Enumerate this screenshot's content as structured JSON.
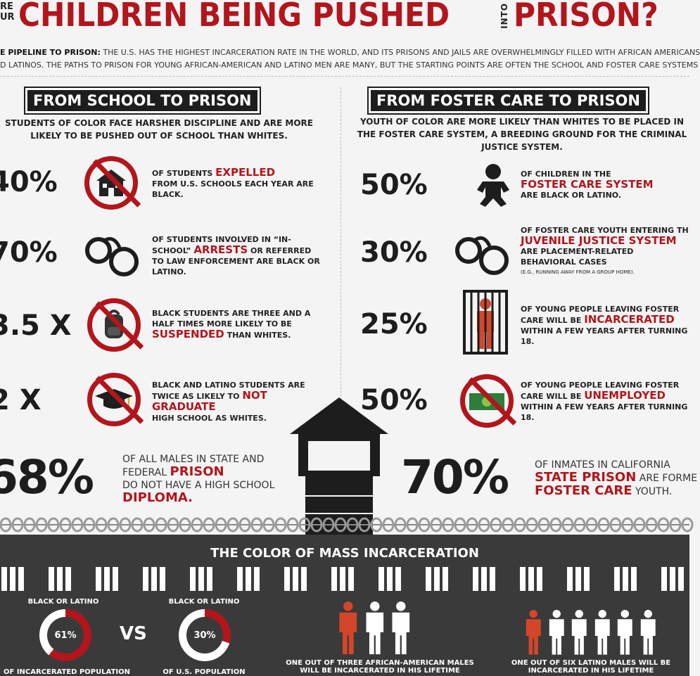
{
  "header": {
    "small_line1": "RE",
    "small_line2": "UR",
    "title": "CHILDREN BEING PUSHED",
    "into": "INTO",
    "title2": "PRISON?",
    "intro_lead": "E PIPELINE TO PRISON:",
    "intro_line1": " THE U.S. HAS THE HIGHEST INCARCERATION RATE IN THE WORLD, AND ITS PRISONS AND JAILS ARE OVERWHELMINGLY FILLED WITH AFRICAN AMERICANS",
    "intro_line2": "D LATINOS. THE PATHS TO PRISON FOR YOUNG AFRICAN-AMERICAN AND LATINO MEN ARE MANY, BUT THE STARTING POINTS ARE OFTEN THE SCHOOL AND FOSTER CARE SYSTEMS"
  },
  "left": {
    "title": "FROM SCHOOL TO PRISON",
    "subtitle": "STUDENTS OF COLOR FACE HARSHER DISCIPLINE AND ARE MORE LIKELY TO BE PUSHED OUT OF SCHOOL THAN WHITES.",
    "stats": [
      {
        "value": "40%",
        "pre": "OF STUDENTS ",
        "em": "EXPELLED",
        "post": "FROM U.S. SCHOOLS EACH YEAR ARE BLACK.",
        "icon": "school-building-icon"
      },
      {
        "value": "70%",
        "pre": "OF STUDENTS INVOLVED IN “IN-SCHOOL” ",
        "em": "ARRESTS",
        "post": "OR REFERRED TO LAW ENFORCEMENT ARE BLACK OR LATINO.",
        "icon": "handcuffs-icon"
      },
      {
        "value": "3.5 X",
        "pre": "BLACK STUDENTS ARE THREE AND A HALF TIMES MORE LIKELY TO BE ",
        "em": "SUSPENDED",
        "post": "THAN WHITES.",
        "icon": "backpack-icon"
      },
      {
        "value": "2 X",
        "pre": "BLACK AND LATINO STUDENTS ARE TWICE AS LIKELY TO ",
        "em": "NOT GRADUATE",
        "post": "HIGH SCHOOL AS WHITES.",
        "icon": "graduation-cap-icon"
      }
    ],
    "huge_value": "68%",
    "huge_line1": "OF ALL MALES IN STATE AND",
    "huge_line2": "FEDERAL ",
    "huge_em": "PRISON",
    "huge_line3": "DO NOT HAVE A HIGH SCHOOL",
    "huge_em2": "DIPLOMA."
  },
  "right": {
    "title": "FROM FOSTER CARE TO PRISON",
    "subtitle": "YOUTH OF COLOR ARE MORE LIKELY THAN WHITES TO BE PLACED IN THE FOSTER CARE SYSTEM, A BREEDING GROUND FOR THE CRIMINAL JUSTICE SYSTEM.",
    "stats": [
      {
        "value": "50%",
        "pre": "OF CHILDREN IN THE",
        "em": "FOSTER CARE SYSTEM",
        "post": "ARE BLACK OR LATINO.",
        "note": "",
        "icon": "baby-icon"
      },
      {
        "value": "30%",
        "pre": "OF FOSTER CARE YOUTH ENTERING TH",
        "em": "JUVENILE JUSTICE SYSTEM",
        "post": "ARE PLACEMENT-RELATED BEHAVIORAL CASES",
        "note": "(e.g., RUNNING AWAY FROM A GROUP HOME).",
        "icon": "handcuffs-icon"
      },
      {
        "value": "25%",
        "pre": "OF YOUNG PEOPLE LEAVING FOSTER CARE WILL BE ",
        "em": "INCARCERATED",
        "post": "WITHIN A FEW YEARS AFTER TURNING 18.",
        "note": "",
        "icon": "jail-cell-icon"
      },
      {
        "value": "50%",
        "pre": "OF YOUNG PEOPLE LEAVING FOSTER CARE WILL BE ",
        "em": "UNEMPLOYED",
        "post": "WITHIN A FEW YEARS AFTER TURNING 18.",
        "note": "",
        "icon": "money-icon"
      }
    ],
    "huge_value": "70%",
    "huge_line1": "OF INMATES IN CALIFORNIA",
    "huge_em": "STATE PRISON",
    "huge_line2": " ARE FORME",
    "huge_em2": "FOSTER CARE",
    "huge_line3": " YOUTH."
  },
  "bottom": {
    "title": "THE COLOR OF MASS INCARCERATION",
    "donut1_top": "BLACK OR LATINO",
    "donut1_value": "61%",
    "donut1_fraction": 0.61,
    "donut1_bottom": "OF INCARCERATED POPULATION",
    "vs": "VS",
    "donut2_top": "BLACK OR LATINO",
    "donut2_value": "30%",
    "donut2_fraction": 0.3,
    "donut2_bottom": "OF U.S. POPULATION",
    "people1_caption1": "ONE OUT OF THREE AFRICAN-AMERICAN MALES",
    "people1_caption2": "WILL BE INCARCERATED IN HIS LIFETIME",
    "people2_caption1": "ONE OUT OF SIX LATINO MALES WILL BE",
    "people2_caption2": "INCARCERATED IN HIS LIFETIME"
  },
  "colors": {
    "accent": "#b3151c",
    "dark": "#3a3a3a",
    "person_red": "#d4462a"
  }
}
